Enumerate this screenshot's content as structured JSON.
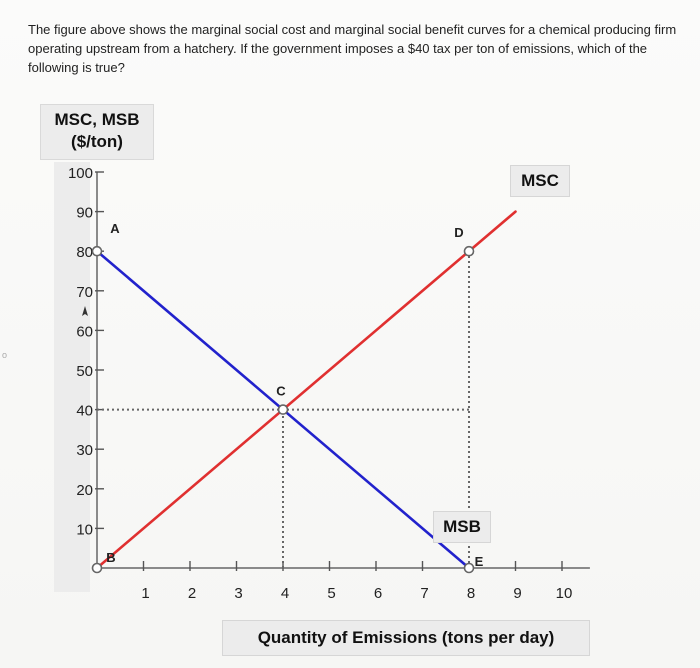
{
  "question_text": "The figure above shows the marginal social cost and marginal social benefit curves for a chemical producing firm operating upstream from a hatchery. If the government imposes a $40 tax per ton of emissions, which of the following is true?",
  "chart_data": {
    "type": "line",
    "ylabel_line1": "MSC, MSB",
    "ylabel_line2": "($/ton)",
    "xlabel": "Quantity of Emissions (tons per day)",
    "xlim": [
      0,
      10
    ],
    "ylim": [
      0,
      100
    ],
    "xticks": [
      "1",
      "2",
      "3",
      "4",
      "5",
      "6",
      "7",
      "8",
      "9",
      "10"
    ],
    "yticks": [
      "10",
      "20",
      "30",
      "40",
      "50",
      "60",
      "70",
      "80",
      "90",
      "100"
    ],
    "series": [
      {
        "name": "MSC",
        "color": "#e03030",
        "x": [
          0,
          9
        ],
        "y": [
          0,
          90
        ]
      },
      {
        "name": "MSB",
        "color": "#2222cc",
        "x": [
          0,
          8
        ],
        "y": [
          80,
          0
        ]
      }
    ],
    "points": [
      {
        "label": "A",
        "x": 0,
        "y": 80
      },
      {
        "label": "B",
        "x": 0,
        "y": 0
      },
      {
        "label": "C",
        "x": 4,
        "y": 40
      },
      {
        "label": "D",
        "x": 8,
        "y": 80
      },
      {
        "label": "E",
        "x": 8,
        "y": 0
      }
    ],
    "dotted_guides": [
      {
        "from": [
          0,
          40
        ],
        "to": [
          8,
          40
        ]
      },
      {
        "from": [
          4,
          0
        ],
        "to": [
          4,
          40
        ]
      },
      {
        "from": [
          8,
          0
        ],
        "to": [
          8,
          80
        ]
      }
    ],
    "grid": false
  }
}
